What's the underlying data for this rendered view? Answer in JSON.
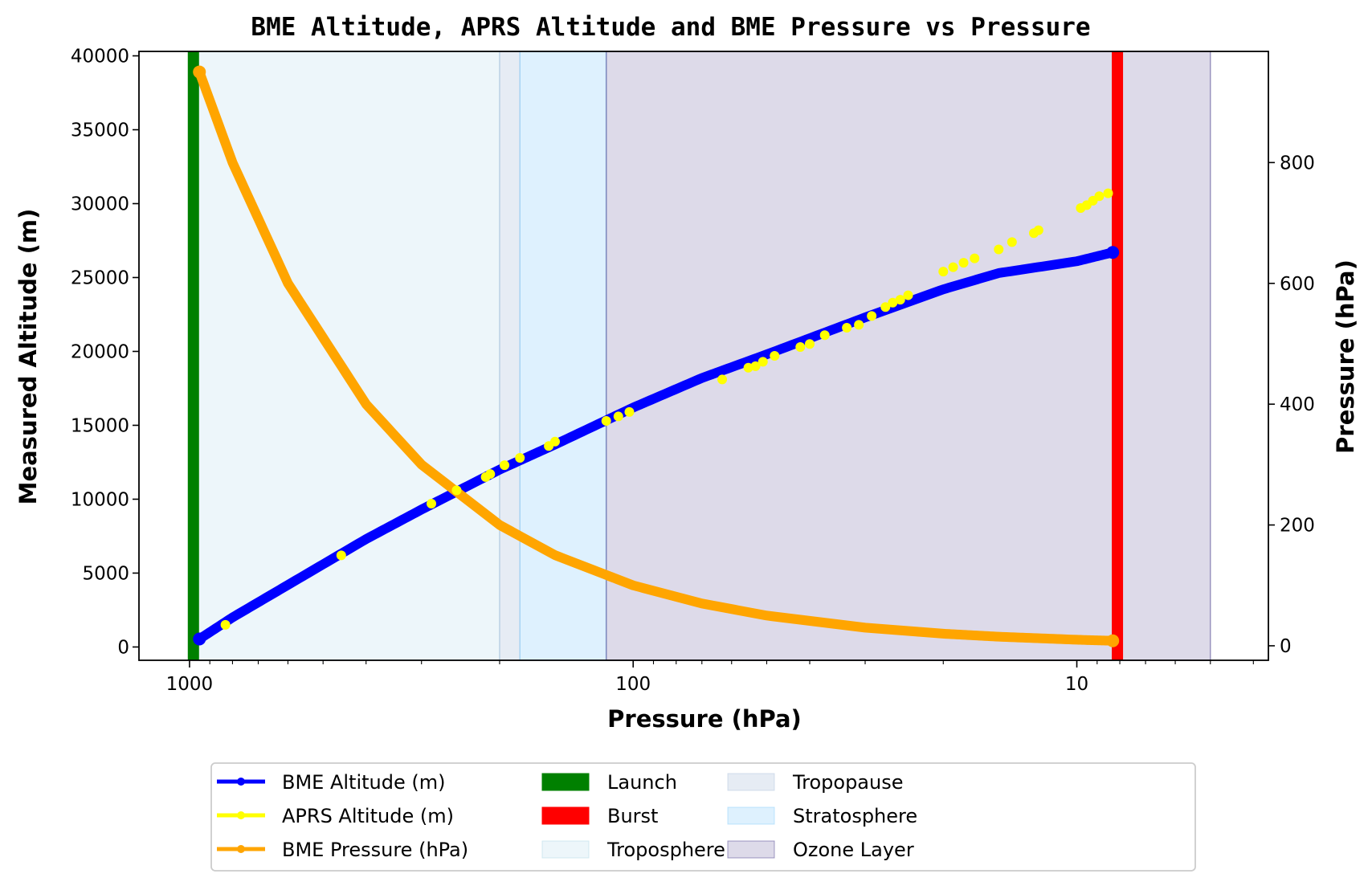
{
  "chart_data": {
    "type": "line",
    "title": "BME Altitude, APRS Altitude and BME Pressure vs Pressure",
    "xlabel": "Pressure (hPa)",
    "ylabel": "Measured Altitude (m)",
    "y2label": "Pressure (hPa)",
    "x_scale": "log",
    "x_reversed": true,
    "xlim": [
      1300,
      3.7
    ],
    "ylim": [
      -900,
      40300
    ],
    "y2lim": [
      -24,
      984
    ],
    "x_ticks": [
      1000,
      100,
      10
    ],
    "x_tick_labels": [
      "1000",
      "100",
      "10"
    ],
    "y_ticks": [
      0,
      5000,
      10000,
      15000,
      20000,
      25000,
      30000,
      35000,
      40000
    ],
    "y_tick_labels": [
      "0",
      "5000",
      "10000",
      "15000",
      "20000",
      "25000",
      "30000",
      "35000",
      "40000"
    ],
    "y2_ticks": [
      0,
      200,
      400,
      600,
      800
    ],
    "y2_tick_labels": [
      "0",
      "200",
      "400",
      "600",
      "800"
    ],
    "grid": false,
    "legend_position": "bottom",
    "series": [
      {
        "name": "BME Altitude (m)",
        "color": "#0000ff",
        "axis": "left",
        "x": [
          950,
          800,
          600,
          400,
          300,
          200,
          150,
          100,
          70,
          50,
          30,
          20,
          15,
          10,
          8.3
        ],
        "y": [
          540,
          2000,
          4200,
          7300,
          9300,
          12000,
          13700,
          16200,
          18200,
          19800,
          22300,
          24200,
          25300,
          26100,
          26700
        ]
      },
      {
        "name": "APRS Altitude (m)",
        "color": "#ffff00",
        "axis": "left",
        "marker_only": true,
        "x": [
          830,
          455,
          285,
          250,
          215,
          210,
          195,
          180,
          155,
          150,
          115,
          108,
          102,
          63,
          55,
          53,
          51,
          48,
          42,
          40,
          37,
          33,
          31,
          29,
          27,
          26,
          25,
          24,
          20,
          19,
          18,
          17,
          15,
          14,
          12.5,
          12.2,
          9.8,
          9.5,
          9.2,
          8.9,
          8.5
        ],
        "y": [
          1500,
          6200,
          9700,
          10600,
          11500,
          11700,
          12300,
          12800,
          13600,
          13900,
          15300,
          15600,
          15900,
          18100,
          18900,
          19000,
          19300,
          19700,
          20300,
          20500,
          21100,
          21600,
          21800,
          22400,
          23000,
          23300,
          23500,
          23800,
          25400,
          25700,
          26000,
          26300,
          26900,
          27400,
          28000,
          28200,
          29700,
          29900,
          30200,
          30500,
          30700
        ]
      },
      {
        "name": "BME Pressure (hPa)",
        "color": "#ffa500",
        "axis": "right",
        "x": [
          950,
          800,
          600,
          400,
          300,
          200,
          150,
          100,
          70,
          50,
          30,
          20,
          15,
          10,
          8.3
        ],
        "y": [
          950,
          800,
          600,
          400,
          300,
          200,
          150,
          100,
          70,
          50,
          30,
          20,
          15,
          10,
          8.3
        ]
      }
    ],
    "vertical_lines": [
      {
        "name": "Launch",
        "color": "#008000",
        "x": 980
      },
      {
        "name": "Burst",
        "color": "#ff0000",
        "x": 8.1
      }
    ],
    "regions": [
      {
        "name": "Troposphere",
        "color": "#add8e6",
        "x_from": 980,
        "x_to": 200
      },
      {
        "name": "Tropopause",
        "color": "#b0c4de",
        "x_from": 200,
        "x_to": 180
      },
      {
        "name": "Stratosphere",
        "color": "#87cefa",
        "x_from": 180,
        "x_to": 115
      },
      {
        "name": "Ozone Layer",
        "color": "#483d8b",
        "x_from": 115,
        "x_to": 5
      }
    ],
    "legend": [
      {
        "label": "BME Altitude (m)",
        "kind": "line",
        "color": "#0000ff"
      },
      {
        "label": "APRS Altitude (m)",
        "kind": "line",
        "color": "#ffff00"
      },
      {
        "label": "BME Pressure (hPa)",
        "kind": "line",
        "color": "#ffa500"
      },
      {
        "label": "Launch",
        "kind": "patch",
        "color": "#008000"
      },
      {
        "label": "Burst",
        "kind": "patch",
        "color": "#ff0000"
      },
      {
        "label": "Troposphere",
        "kind": "patch",
        "color": "#add8e6"
      },
      {
        "label": "Tropopause",
        "kind": "patch",
        "color": "#b0c4de"
      },
      {
        "label": "Stratosphere",
        "kind": "patch",
        "color": "#87cefa"
      },
      {
        "label": "Ozone Layer",
        "kind": "patch",
        "color": "#483d8b"
      }
    ]
  }
}
